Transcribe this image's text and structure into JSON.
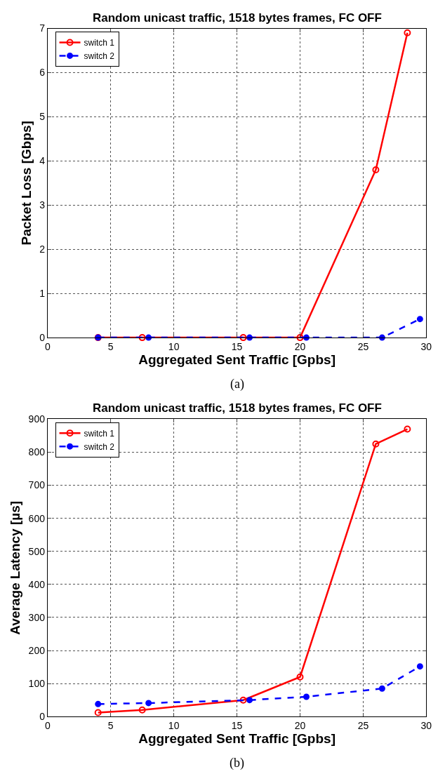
{
  "chart_data": [
    {
      "type": "line",
      "title": "Random unicast traffic, 1518 bytes frames, FC OFF",
      "xlabel": "Aggregated Sent Traffic [Gpbs]",
      "ylabel": "Packet Loss [Gbps]",
      "annotations": [
        "(a)"
      ],
      "xlim": [
        0,
        30
      ],
      "xticks": [
        0,
        5,
        10,
        15,
        20,
        25,
        30
      ],
      "ylim": [
        0,
        7
      ],
      "yticks": [
        0,
        1,
        2,
        3,
        4,
        5,
        6,
        7
      ],
      "grid": true,
      "legend": "top left",
      "marker": "circle",
      "series": [
        {
          "name": "switch 1",
          "color": "#ff0000",
          "line_style": "solid",
          "x": [
            4,
            7.5,
            15.5,
            20,
            26,
            28.5
          ],
          "values": [
            0,
            0,
            0,
            0,
            3.8,
            6.9
          ]
        },
        {
          "name": "switch 2",
          "color": "#0000ff",
          "line_style": "dashed",
          "x": [
            4,
            8,
            16,
            20.5,
            26.5,
            29.5
          ],
          "values": [
            0,
            0,
            0,
            0,
            0,
            0.42
          ]
        }
      ]
    },
    {
      "type": "line",
      "title": "Random unicast traffic, 1518 bytes frames, FC OFF",
      "xlabel": "Aggregated Sent Traffic [Gpbs]",
      "ylabel": "Average Latency [µs]",
      "annotations": [
        "(b)"
      ],
      "xlim": [
        0,
        30
      ],
      "xticks": [
        0,
        5,
        10,
        15,
        20,
        25,
        30
      ],
      "ylim": [
        0,
        900
      ],
      "yticks": [
        0,
        100,
        200,
        300,
        400,
        500,
        600,
        700,
        800,
        900
      ],
      "grid": true,
      "legend": "top left",
      "marker": "circle",
      "series": [
        {
          "name": "switch 1",
          "color": "#ff0000",
          "line_style": "solid",
          "x": [
            4,
            7.5,
            15.5,
            20,
            26,
            28.5
          ],
          "values": [
            12,
            20,
            50,
            120,
            825,
            870
          ]
        },
        {
          "name": "switch 2",
          "color": "#0000ff",
          "line_style": "dashed",
          "x": [
            4,
            8,
            16,
            20.5,
            26.5,
            29.5
          ],
          "values": [
            38,
            41,
            50,
            60,
            85,
            152
          ]
        }
      ]
    }
  ]
}
